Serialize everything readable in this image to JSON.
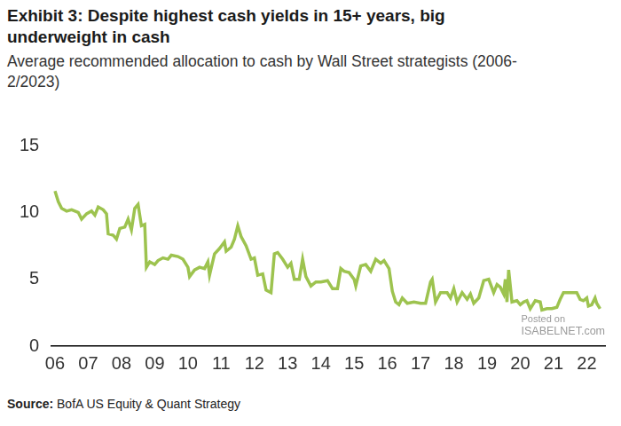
{
  "chart_data": {
    "type": "line",
    "title": [
      "Exhibit 3: Despite highest cash yields in 15+ years, big",
      "underweight in cash"
    ],
    "subtitle": [
      "Average recommended allocation to cash by Wall Street strategists (2006-",
      "2/2023)"
    ],
    "source_label": "Source:",
    "source": "BofA US Equity & Quant Strategy",
    "watermark": [
      "Posted on",
      "ISABELNET.com"
    ],
    "color": "#9dc34f",
    "grid": false,
    "x": [
      2006.0,
      2006.1,
      2006.2,
      2006.35,
      2006.5,
      2006.7,
      2006.8,
      2006.95,
      2007.1,
      2007.2,
      2007.3,
      2007.45,
      2007.55,
      2007.6,
      2007.75,
      2007.85,
      2007.95,
      2008.1,
      2008.2,
      2008.3,
      2008.4,
      2008.5,
      2008.6,
      2008.7,
      2008.75,
      2008.85,
      2009.0,
      2009.1,
      2009.25,
      2009.4,
      2009.5,
      2009.7,
      2009.85,
      2010.0,
      2010.05,
      2010.2,
      2010.35,
      2010.5,
      2010.6,
      2010.65,
      2010.8,
      2010.95,
      2011.1,
      2011.15,
      2011.3,
      2011.4,
      2011.5,
      2011.6,
      2011.75,
      2011.9,
      2012.0,
      2012.1,
      2012.25,
      2012.35,
      2012.5,
      2012.6,
      2012.7,
      2012.85,
      2013.0,
      2013.1,
      2013.2,
      2013.35,
      2013.45,
      2013.55,
      2013.7,
      2013.85,
      2014.0,
      2014.2,
      2014.35,
      2014.5,
      2014.6,
      2014.7,
      2014.85,
      2015.0,
      2015.05,
      2015.2,
      2015.35,
      2015.5,
      2015.65,
      2015.8,
      2015.9,
      2016.05,
      2016.15,
      2016.25,
      2016.35,
      2016.45,
      2016.6,
      2016.8,
      2017.0,
      2017.15,
      2017.3,
      2017.35,
      2017.45,
      2017.6,
      2017.8,
      2017.9,
      2018.0,
      2018.1,
      2018.25,
      2018.4,
      2018.5,
      2018.6,
      2018.75,
      2018.9,
      2019.05,
      2019.2,
      2019.3,
      2019.4,
      2019.5,
      2019.55,
      2019.6,
      2019.65,
      2019.75,
      2019.9,
      2020.0,
      2020.1,
      2020.2,
      2020.3,
      2020.45,
      2020.6,
      2020.65,
      2020.8,
      2020.95,
      2021.1,
      2021.2,
      2021.3,
      2021.5,
      2021.7,
      2021.8,
      2021.9,
      2022.0,
      2022.05,
      2022.15,
      2022.25,
      2022.3,
      2022.4
    ],
    "values": [
      11.6,
      10.8,
      10.3,
      10.1,
      10.2,
      10.0,
      9.5,
      9.9,
      10.1,
      9.8,
      10.4,
      10.2,
      9.9,
      8.4,
      8.3,
      8.0,
      8.8,
      8.9,
      9.5,
      8.7,
      10.3,
      10.6,
      9.0,
      9.1,
      5.9,
      6.3,
      6.1,
      6.4,
      6.6,
      6.5,
      6.8,
      6.7,
      6.5,
      5.9,
      5.2,
      5.7,
      5.9,
      5.8,
      6.3,
      5.3,
      6.9,
      7.3,
      7.8,
      7.1,
      7.4,
      8.0,
      9.0,
      8.2,
      7.5,
      6.5,
      6.6,
      5.3,
      5.4,
      4.2,
      4.0,
      6.9,
      7.0,
      6.5,
      5.9,
      6.2,
      5.0,
      5.0,
      6.5,
      5.2,
      4.5,
      4.8,
      4.8,
      4.9,
      4.3,
      4.3,
      5.8,
      5.6,
      5.5,
      5.0,
      4.5,
      6.0,
      6.1,
      5.6,
      6.5,
      6.2,
      6.4,
      5.8,
      4.1,
      3.3,
      3.1,
      3.6,
      3.2,
      3.3,
      3.2,
      3.2,
      4.8,
      5.0,
      3.3,
      4.0,
      4.0,
      3.6,
      4.3,
      3.3,
      4.0,
      3.5,
      3.9,
      3.2,
      3.6,
      4.9,
      5.0,
      4.0,
      4.6,
      4.4,
      3.9,
      5.0,
      3.3,
      5.7,
      3.3,
      3.4,
      3.1,
      3.3,
      3.4,
      2.8,
      3.4,
      3.3,
      2.7,
      2.8,
      2.8,
      2.9,
      3.5,
      4.0,
      4.0,
      4.0,
      3.5,
      3.4,
      3.6,
      3.0,
      3.1,
      3.6,
      3.2,
      2.8
    ],
    "xlim": [
      2005.9,
      2022.55
    ],
    "xticks": [
      {
        "value": 2006,
        "label": "06"
      },
      {
        "value": 2007,
        "label": "07"
      },
      {
        "value": 2008,
        "label": "08"
      },
      {
        "value": 2009,
        "label": "09"
      },
      {
        "value": 2010,
        "label": "10"
      },
      {
        "value": 2011,
        "label": "11"
      },
      {
        "value": 2012,
        "label": "12"
      },
      {
        "value": 2013,
        "label": "13"
      },
      {
        "value": 2014,
        "label": "14"
      },
      {
        "value": 2015,
        "label": "15"
      },
      {
        "value": 2016,
        "label": "16"
      },
      {
        "value": 2017,
        "label": "17"
      },
      {
        "value": 2018,
        "label": "18"
      },
      {
        "value": 2019,
        "label": "19"
      },
      {
        "value": 2020,
        "label": "20"
      },
      {
        "value": 2021,
        "label": "21"
      },
      {
        "value": 2022,
        "label": "22"
      }
    ],
    "ylim": [
      0,
      15
    ],
    "yticks": [
      0,
      5,
      10,
      15
    ]
  }
}
